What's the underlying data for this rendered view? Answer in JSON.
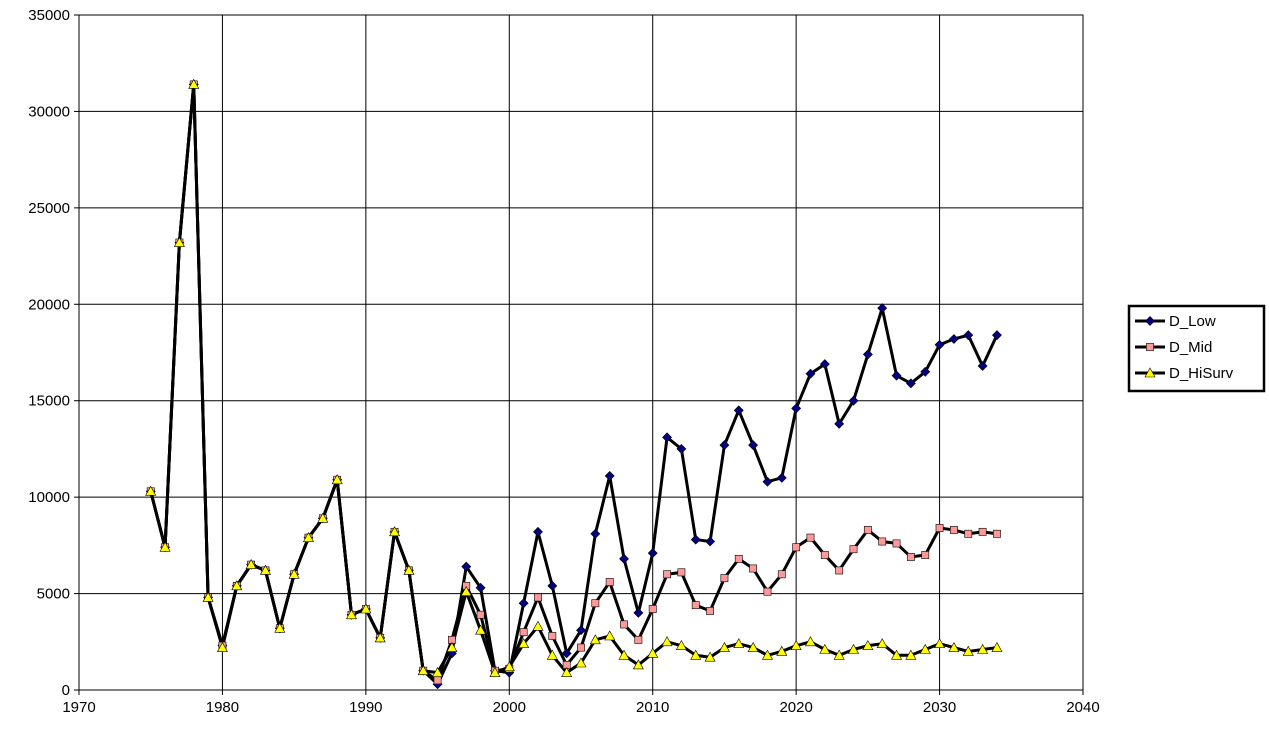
{
  "chart_data": {
    "type": "line",
    "xlim": [
      1970,
      2040
    ],
    "ylim": [
      0,
      35000
    ],
    "x_ticks": [
      "1970",
      "1980",
      "1990",
      "2000",
      "2010",
      "2020",
      "2030",
      "2040"
    ],
    "y_ticks": [
      "0",
      "5000",
      "10000",
      "15000",
      "20000",
      "25000",
      "30000",
      "35000"
    ],
    "grid": true,
    "legend_position": "right",
    "x": [
      1975,
      1976,
      1977,
      1978,
      1979,
      1980,
      1981,
      1982,
      1983,
      1984,
      1985,
      1986,
      1987,
      1988,
      1989,
      1990,
      1991,
      1992,
      1993,
      1994,
      1995,
      1996,
      1997,
      1998,
      1999,
      2000,
      2001,
      2002,
      2003,
      2004,
      2005,
      2006,
      2007,
      2008,
      2009,
      2010,
      2011,
      2012,
      2013,
      2014,
      2015,
      2016,
      2017,
      2018,
      2019,
      2020,
      2021,
      2022,
      2023,
      2024,
      2025,
      2026,
      2027,
      2028,
      2029,
      2030,
      2031,
      2032,
      2033,
      2034
    ],
    "series": [
      {
        "name": "D_Low",
        "marker": "diamond",
        "marker_color": "#000080",
        "values": [
          10300,
          7400,
          23200,
          31400,
          4800,
          2300,
          5400,
          6500,
          6200,
          3200,
          6000,
          7900,
          8900,
          10900,
          3900,
          4200,
          2700,
          8200,
          6200,
          1000,
          300,
          1900,
          6400,
          5300,
          1000,
          900,
          4500,
          8200,
          5400,
          1900,
          3100,
          8100,
          11100,
          6800,
          4000,
          7100,
          13100,
          12500,
          7800,
          7700,
          12700,
          14500,
          12700,
          10800,
          11000,
          14600,
          16400,
          16900,
          13800,
          15000,
          17400,
          19800,
          16300,
          15900,
          16500,
          17900,
          18200,
          18400,
          16800,
          18400
        ]
      },
      {
        "name": "D_Mid",
        "marker": "square",
        "marker_color": "#ff9999",
        "values": [
          10300,
          7400,
          23200,
          31400,
          4800,
          2300,
          5400,
          6500,
          6200,
          3200,
          6000,
          7900,
          8900,
          10900,
          3900,
          4200,
          2700,
          8200,
          6200,
          1000,
          500,
          2600,
          5400,
          3900,
          1000,
          1100,
          3000,
          4800,
          2800,
          1300,
          2200,
          4500,
          5600,
          3400,
          2600,
          4200,
          6000,
          6100,
          4400,
          4100,
          5800,
          6800,
          6300,
          5100,
          6000,
          7400,
          7900,
          7000,
          6200,
          7300,
          8300,
          7700,
          7600,
          6900,
          7000,
          8400,
          8300,
          8100,
          8200,
          8100
        ]
      },
      {
        "name": "D_HiSurv",
        "marker": "triangle",
        "marker_color": "#ffff00",
        "values": [
          10300,
          7400,
          23200,
          31400,
          4800,
          2200,
          5400,
          6500,
          6200,
          3200,
          6000,
          7900,
          8900,
          10900,
          3900,
          4200,
          2700,
          8200,
          6200,
          1000,
          900,
          2200,
          5100,
          3100,
          900,
          1200,
          2400,
          3300,
          1800,
          900,
          1400,
          2600,
          2800,
          1800,
          1300,
          1900,
          2500,
          2300,
          1800,
          1700,
          2200,
          2400,
          2200,
          1800,
          2000,
          2300,
          2500,
          2100,
          1800,
          2100,
          2300,
          2400,
          1800,
          1800,
          2100,
          2400,
          2200,
          2000,
          2100,
          2200
        ]
      }
    ]
  }
}
